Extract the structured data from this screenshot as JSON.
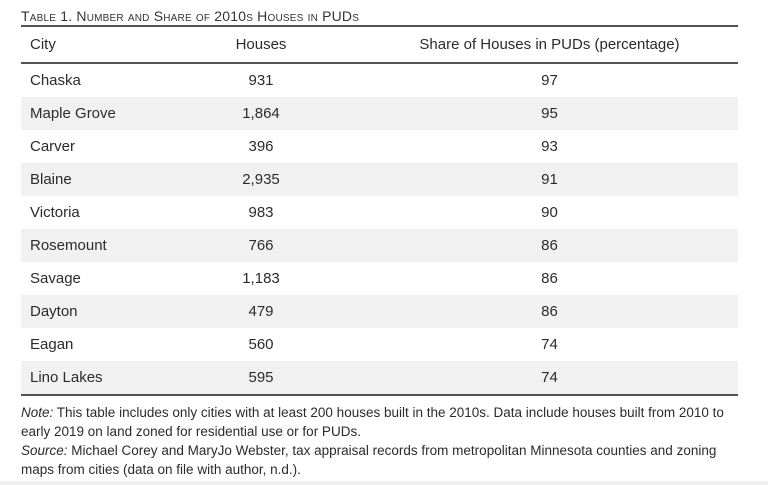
{
  "table": {
    "title": "Table 1. Number and Share of 2010s Houses in PUDs",
    "columns": [
      "City",
      "Houses",
      "Share of Houses in PUDs (percentage)"
    ],
    "rows": [
      {
        "city": "Chaska",
        "houses": "931",
        "share": "97"
      },
      {
        "city": "Maple Grove",
        "houses": "1,864",
        "share": "95"
      },
      {
        "city": "Carver",
        "houses": "396",
        "share": "93"
      },
      {
        "city": "Blaine",
        "houses": "2,935",
        "share": "91"
      },
      {
        "city": "Victoria",
        "houses": "983",
        "share": "90"
      },
      {
        "city": "Rosemount",
        "houses": "766",
        "share": "86"
      },
      {
        "city": "Savage",
        "houses": "1,183",
        "share": "86"
      },
      {
        "city": "Dayton",
        "houses": "479",
        "share": "86"
      },
      {
        "city": "Eagan",
        "houses": "560",
        "share": "74"
      },
      {
        "city": "Lino Lakes",
        "houses": "595",
        "share": "74"
      }
    ]
  },
  "notes": {
    "note_label": "Note:",
    "note_text": " This table includes only cities with at least 200 houses built in the 2010s. Data include houses built from 2010 to early 2019 on land zoned for residential use or for PUDs.",
    "source_label": "Source:",
    "source_text": " Michael Corey and MaryJo Webster, tax appraisal records from metropolitan Minnesota counties and zoning maps from cities (data on file with author, n.d.)."
  },
  "colors": {
    "row_alt": "#f1f1f2",
    "rule": "#515254",
    "text": "#2b2b2d"
  },
  "chart_data": {
    "type": "table",
    "title": "Table 1. Number and Share of 2010s Houses in PUDs",
    "columns": [
      "City",
      "Houses",
      "Share of Houses in PUDs (percentage)"
    ],
    "categories": [
      "Chaska",
      "Maple Grove",
      "Carver",
      "Blaine",
      "Victoria",
      "Rosemount",
      "Savage",
      "Dayton",
      "Eagan",
      "Lino Lakes"
    ],
    "series": [
      {
        "name": "Houses",
        "values": [
          931,
          1864,
          396,
          2935,
          983,
          766,
          1183,
          479,
          560,
          595
        ]
      },
      {
        "name": "Share of Houses in PUDs (percentage)",
        "values": [
          97,
          95,
          93,
          91,
          90,
          86,
          86,
          86,
          74,
          74
        ]
      }
    ]
  }
}
